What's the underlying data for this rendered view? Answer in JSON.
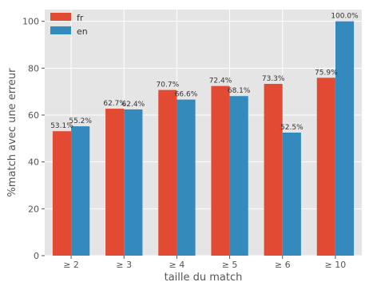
{
  "chart_data": {
    "type": "bar",
    "xlabel": "taille du match",
    "ylabel": "%match avec une erreur",
    "ylim": [
      0,
      105
    ],
    "yticks": [
      0,
      20,
      40,
      60,
      80,
      100
    ],
    "categories": [
      "≥  2",
      "≥  3",
      "≥  4",
      "≥  5",
      "≥  6",
      "≥  10"
    ],
    "series": [
      {
        "name": "fr",
        "color": "#E24A33",
        "values": [
          53.1,
          62.7,
          70.7,
          72.4,
          73.3,
          75.9
        ],
        "labels": [
          "53.1%",
          "62.7%",
          "70.7%",
          "72.4%",
          "73.3%",
          "75.9%"
        ]
      },
      {
        "name": "en",
        "color": "#348ABD",
        "values": [
          55.2,
          62.4,
          66.6,
          68.1,
          52.5,
          100.0
        ],
        "labels": [
          "55.2%",
          "62.4%",
          "66.6%",
          "68.1%",
          "52.5%",
          "100.0%"
        ]
      }
    ],
    "grid": true,
    "legend_position": "top-left",
    "background_color": "#E5E5E5",
    "grid_color": "#FFFFFF"
  }
}
